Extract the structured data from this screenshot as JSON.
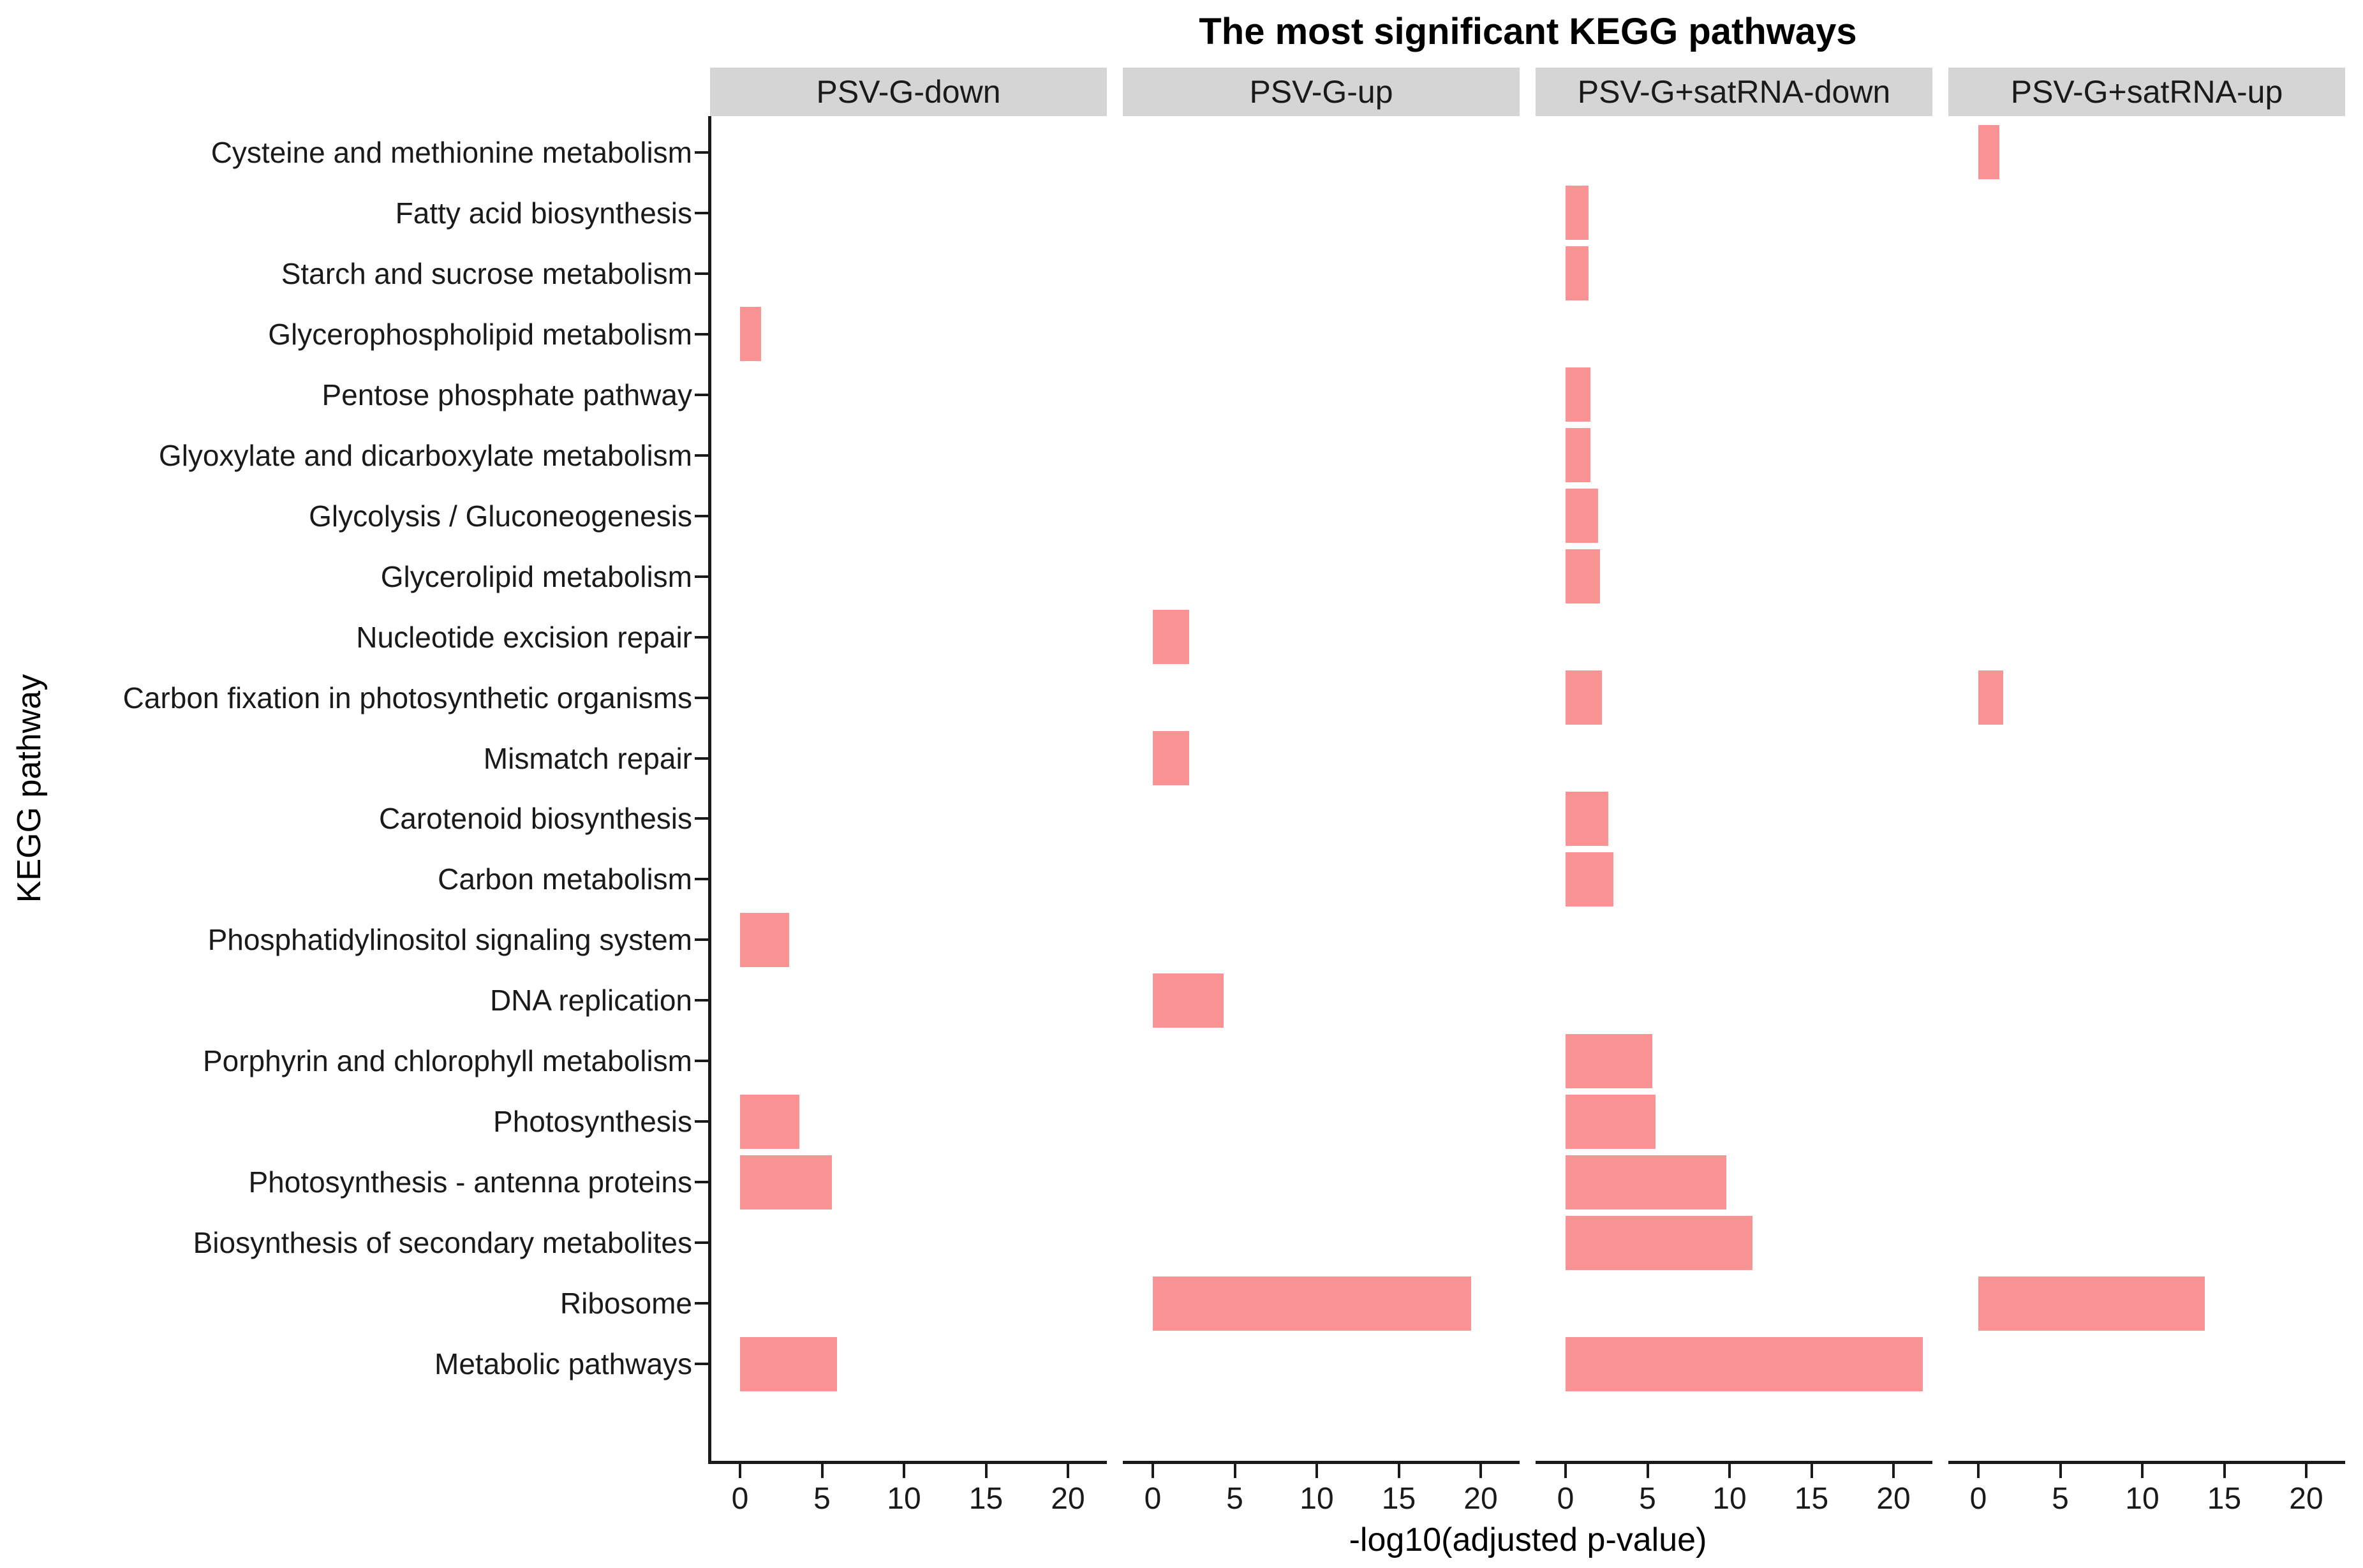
{
  "chart_data": {
    "type": "bar",
    "orientation": "horizontal",
    "title": "The most significant KEGG pathways",
    "xlabel": "-log10(adjusted p-value)",
    "ylabel": "KEGG pathway",
    "x_ticks": [
      0,
      5,
      10,
      15,
      20
    ],
    "xlim": [
      0,
      22.5
    ],
    "grid": false,
    "legend": "none",
    "facets": [
      "PSV-G-down",
      "PSV-G-up",
      "PSV-G+satRNA-down",
      "PSV-G+satRNA-up"
    ],
    "categories": [
      "Cysteine and methionine metabolism",
      "Fatty acid biosynthesis",
      "Starch and sucrose metabolism",
      "Glycerophospholipid metabolism",
      "Pentose phosphate pathway",
      "Glyoxylate and dicarboxylate metabolism",
      "Glycolysis / Gluconeogenesis",
      "Glycerolipid metabolism",
      "Nucleotide excision repair",
      "Carbon fixation in photosynthetic organisms",
      "Mismatch repair",
      "Carotenoid biosynthesis",
      "Carbon metabolism",
      "Phosphatidylinositol signaling system",
      "DNA replication",
      "Porphyrin and chlorophyll metabolism",
      "Photosynthesis",
      "Photosynthesis - antenna proteins",
      "Biosynthesis of secondary metabolites",
      "Ribosome",
      "Metabolic pathways"
    ],
    "series": [
      {
        "name": "PSV-G-down",
        "values": [
          0,
          0,
          0,
          1.3,
          0,
          0,
          0,
          0,
          0,
          0,
          0,
          0,
          0,
          3.0,
          0,
          0,
          3.6,
          5.6,
          0,
          0,
          5.9
        ]
      },
      {
        "name": "PSV-G-up",
        "values": [
          0,
          0,
          0,
          0,
          0,
          0,
          0,
          0,
          2.2,
          0,
          2.2,
          0,
          0,
          0,
          4.3,
          0,
          0,
          0,
          0,
          19.4,
          0
        ]
      },
      {
        "name": "PSV-G+satRNA-down",
        "values": [
          0,
          1.4,
          1.4,
          0,
          1.5,
          1.5,
          2.0,
          2.1,
          0,
          2.2,
          0,
          2.6,
          2.9,
          0,
          0,
          5.3,
          5.5,
          9.8,
          11.4,
          0,
          21.8
        ]
      },
      {
        "name": "PSV-G+satRNA-up",
        "values": [
          1.3,
          0,
          0,
          0,
          0,
          0,
          0,
          0,
          0,
          1.5,
          0,
          0,
          0,
          0,
          0,
          0,
          0,
          0,
          0,
          13.8,
          0
        ]
      }
    ]
  },
  "colors": {
    "bar": "#fa9393",
    "strip_background": "#d5d5d5",
    "axis": "#1a1a1a",
    "background": "#ffffff"
  }
}
